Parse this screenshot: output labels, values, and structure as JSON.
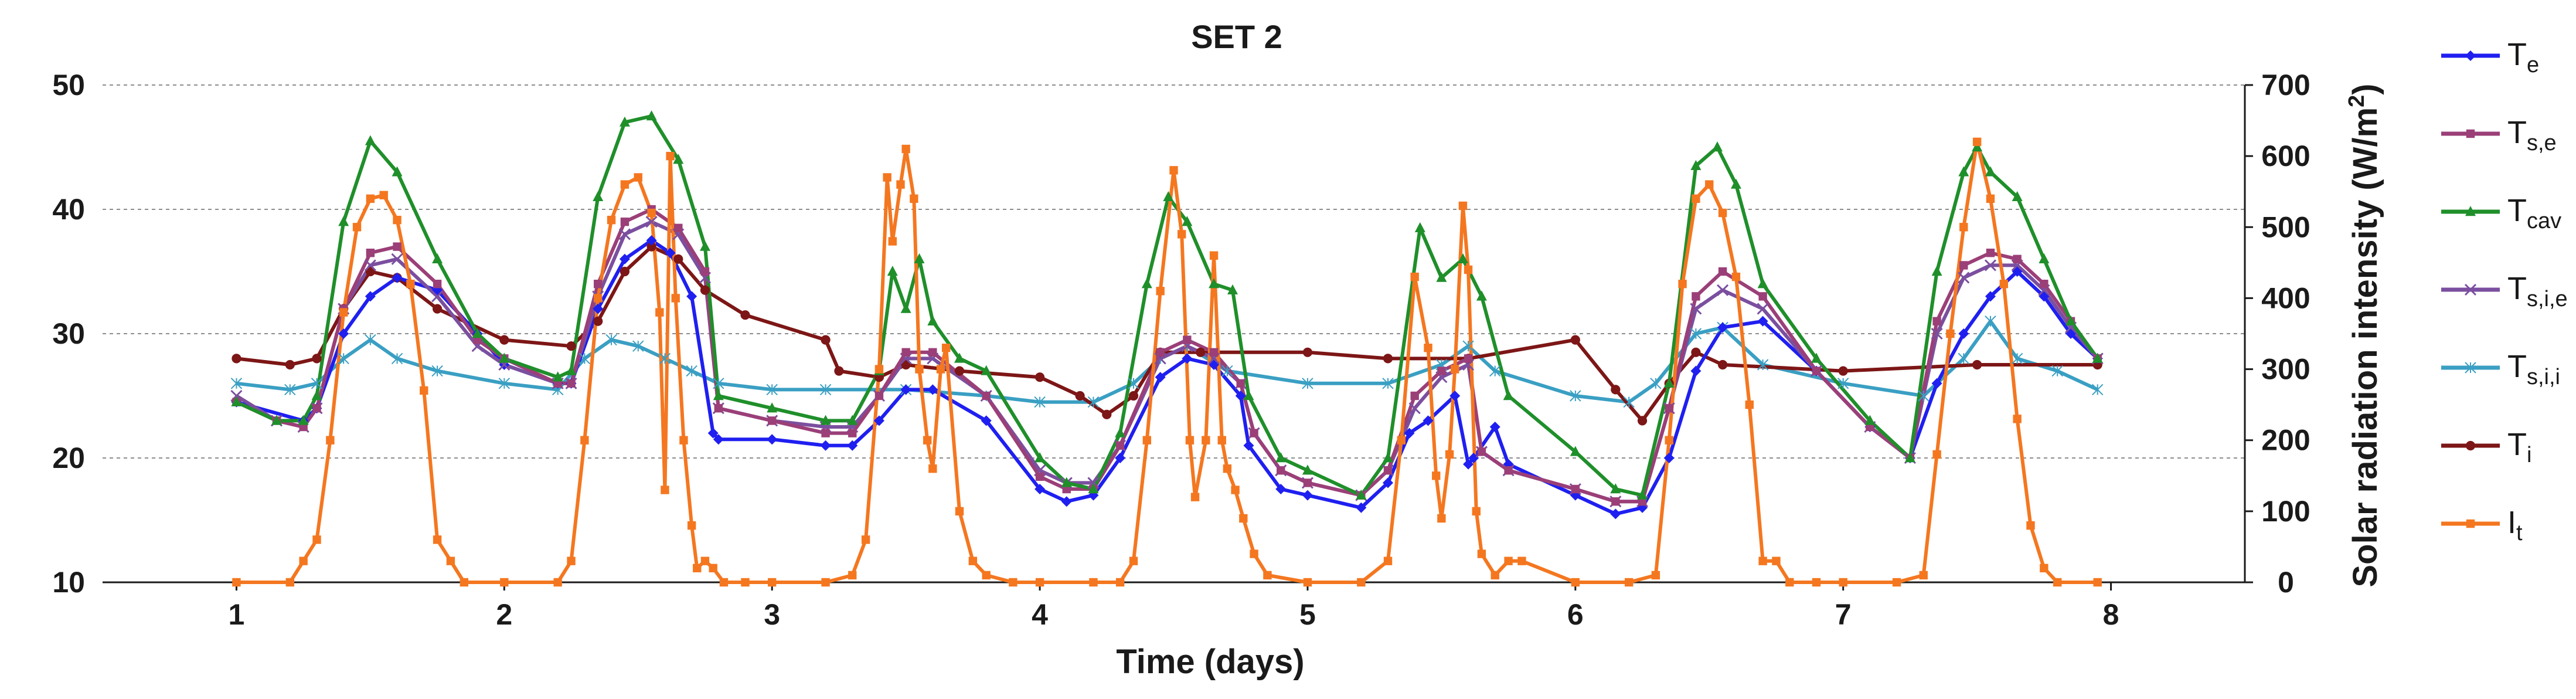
{
  "chart_data": {
    "type": "line",
    "title": "SET 2",
    "xlabel": "Time (days)",
    "ylabel": "",
    "y2label": "Solar radiation intensity (W/m",
    "y2label_sup": "2",
    "y2label_end": ")",
    "xlim": [
      0.5,
      8.5
    ],
    "ylim": [
      10,
      50
    ],
    "y2lim": [
      0,
      700
    ],
    "xticks": [
      "1",
      "2",
      "3",
      "4",
      "5",
      "6",
      "7",
      "8"
    ],
    "yticks": [
      "10",
      "20",
      "30",
      "40",
      "50"
    ],
    "y2ticks": [
      "0",
      "100",
      "200",
      "300",
      "400",
      "500",
      "600",
      "700"
    ],
    "series": [
      {
        "name": "T",
        "sub": "e",
        "color": "#1f1ff0",
        "marker": "diamond",
        "axis": "left",
        "x": [
          1.0,
          1.25,
          1.3,
          1.4,
          1.5,
          1.6,
          1.75,
          1.9,
          2.0,
          2.2,
          2.25,
          2.35,
          2.45,
          2.55,
          2.62,
          2.7,
          2.78,
          2.8,
          3.0,
          3.2,
          3.3,
          3.4,
          3.5,
          3.6,
          3.8,
          4.0,
          4.1,
          4.2,
          4.3,
          4.45,
          4.55,
          4.65,
          4.75,
          4.78,
          4.9,
          5.0,
          5.2,
          5.3,
          5.38,
          5.45,
          5.55,
          5.6,
          5.62,
          5.7,
          5.75,
          6.0,
          6.15,
          6.25,
          6.35,
          6.45,
          6.55,
          6.7,
          6.9,
          7.1,
          7.25,
          7.35,
          7.45,
          7.55,
          7.65,
          7.75,
          7.85,
          7.95
        ],
        "values": [
          24.5,
          23.0,
          24.0,
          30.0,
          33.0,
          34.5,
          33.5,
          30.0,
          27.5,
          26.0,
          26.0,
          32.0,
          36.0,
          37.5,
          36.5,
          33.0,
          22.0,
          21.5,
          21.5,
          21.0,
          21.0,
          23.0,
          25.5,
          25.5,
          23.0,
          17.5,
          16.5,
          17.0,
          20.0,
          26.5,
          28.0,
          27.5,
          25.0,
          21.0,
          17.5,
          17.0,
          16.0,
          18.0,
          22.0,
          23.0,
          25.0,
          19.5,
          20.0,
          22.5,
          19.5,
          17.0,
          15.5,
          16.0,
          20.0,
          27.0,
          30.5,
          31.0,
          27.0,
          22.5,
          20.0,
          26.0,
          30.0,
          33.0,
          35.0,
          33.0,
          30.0,
          28.0
        ]
      },
      {
        "name": "T",
        "sub": "s,e",
        "color": "#9b3f78",
        "marker": "square",
        "axis": "left",
        "x": [
          1.0,
          1.15,
          1.25,
          1.3,
          1.4,
          1.5,
          1.6,
          1.75,
          1.9,
          2.0,
          2.2,
          2.25,
          2.35,
          2.45,
          2.55,
          2.65,
          2.75,
          2.8,
          3.0,
          3.2,
          3.3,
          3.4,
          3.5,
          3.6,
          3.8,
          4.0,
          4.1,
          4.2,
          4.3,
          4.45,
          4.55,
          4.65,
          4.75,
          4.8,
          4.9,
          5.0,
          5.2,
          5.3,
          5.4,
          5.5,
          5.6,
          5.65,
          5.75,
          6.0,
          6.15,
          6.25,
          6.35,
          6.45,
          6.55,
          6.7,
          6.9,
          7.1,
          7.25,
          7.35,
          7.45,
          7.55,
          7.65,
          7.75,
          7.85,
          7.95
        ],
        "values": [
          24.5,
          23.0,
          22.5,
          24.0,
          32.0,
          36.5,
          37.0,
          34.0,
          29.5,
          28.0,
          26.0,
          26.0,
          34.0,
          39.0,
          40.0,
          38.5,
          35.0,
          24.0,
          23.0,
          22.0,
          22.0,
          25.0,
          28.5,
          28.5,
          25.0,
          18.5,
          17.5,
          17.5,
          21.0,
          28.5,
          29.5,
          28.5,
          26.0,
          22.0,
          19.0,
          18.0,
          17.0,
          19.0,
          25.0,
          27.0,
          28.0,
          20.5,
          19.0,
          17.5,
          16.5,
          16.5,
          24.0,
          33.0,
          35.0,
          33.0,
          27.0,
          22.5,
          20.0,
          31.0,
          35.5,
          36.5,
          36.0,
          34.0,
          31.0,
          28.0
        ]
      },
      {
        "name": "T",
        "sub": "cav",
        "color": "#1f8f2a",
        "marker": "triangle",
        "axis": "left",
        "x": [
          1.0,
          1.15,
          1.25,
          1.3,
          1.4,
          1.5,
          1.6,
          1.75,
          1.9,
          2.0,
          2.2,
          2.25,
          2.35,
          2.45,
          2.55,
          2.65,
          2.75,
          2.8,
          3.0,
          3.2,
          3.3,
          3.4,
          3.45,
          3.5,
          3.55,
          3.6,
          3.7,
          3.8,
          4.0,
          4.1,
          4.2,
          4.3,
          4.4,
          4.48,
          4.55,
          4.65,
          4.72,
          4.78,
          4.9,
          5.0,
          5.2,
          5.3,
          5.42,
          5.5,
          5.58,
          5.65,
          5.75,
          6.0,
          6.15,
          6.25,
          6.35,
          6.45,
          6.53,
          6.6,
          6.7,
          6.9,
          7.1,
          7.25,
          7.35,
          7.45,
          7.5,
          7.55,
          7.65,
          7.75,
          7.85,
          7.95
        ],
        "values": [
          24.5,
          23.0,
          23.0,
          25.0,
          39.0,
          45.5,
          43.0,
          36.0,
          30.0,
          28.0,
          26.5,
          27.0,
          41.0,
          47.0,
          47.5,
          44.0,
          37.0,
          25.0,
          24.0,
          23.0,
          23.0,
          27.0,
          35.0,
          32.0,
          36.0,
          31.0,
          28.0,
          27.0,
          20.0,
          18.0,
          17.5,
          22.0,
          34.0,
          41.0,
          39.0,
          34.0,
          33.5,
          25.0,
          20.0,
          19.0,
          17.0,
          20.0,
          38.5,
          34.5,
          36.0,
          33.0,
          25.0,
          20.5,
          17.5,
          17.0,
          26.0,
          43.5,
          45.0,
          42.0,
          34.0,
          28.0,
          23.0,
          20.0,
          35.0,
          43.0,
          45.0,
          43.0,
          41.0,
          36.0,
          31.0,
          28.0
        ]
      },
      {
        "name": "T",
        "sub": "s,i,e",
        "color": "#7b4f9f",
        "marker": "x",
        "axis": "left",
        "x": [
          1.0,
          1.15,
          1.25,
          1.3,
          1.4,
          1.5,
          1.6,
          1.75,
          1.9,
          2.0,
          2.2,
          2.25,
          2.35,
          2.45,
          2.55,
          2.65,
          2.75,
          2.8,
          3.0,
          3.2,
          3.3,
          3.4,
          3.5,
          3.6,
          3.8,
          4.0,
          4.1,
          4.2,
          4.3,
          4.45,
          4.55,
          4.65,
          4.75,
          4.8,
          4.9,
          5.0,
          5.2,
          5.3,
          5.4,
          5.5,
          5.6,
          5.65,
          5.75,
          6.0,
          6.15,
          6.25,
          6.35,
          6.45,
          6.55,
          6.7,
          6.9,
          7.1,
          7.25,
          7.35,
          7.45,
          7.55,
          7.65,
          7.75,
          7.85,
          7.95
        ],
        "values": [
          25.0,
          23.0,
          22.5,
          24.0,
          32.0,
          35.5,
          36.0,
          33.0,
          29.0,
          27.5,
          26.0,
          26.0,
          33.0,
          38.0,
          39.0,
          38.0,
          34.5,
          24.0,
          23.0,
          22.5,
          22.5,
          25.0,
          28.0,
          28.0,
          25.0,
          19.0,
          18.0,
          18.0,
          21.0,
          28.0,
          29.0,
          28.0,
          26.0,
          22.0,
          19.0,
          18.0,
          17.0,
          19.0,
          24.0,
          26.5,
          27.5,
          20.5,
          19.0,
          17.5,
          16.5,
          16.5,
          24.0,
          32.0,
          33.5,
          32.0,
          27.0,
          22.5,
          20.0,
          30.0,
          34.5,
          35.5,
          35.5,
          33.5,
          30.5,
          28.0
        ]
      },
      {
        "name": "T",
        "sub": "s,i,i",
        "color": "#3a9fc3",
        "marker": "star",
        "axis": "left",
        "x": [
          1.0,
          1.2,
          1.3,
          1.4,
          1.5,
          1.6,
          1.75,
          2.0,
          2.2,
          2.3,
          2.4,
          2.5,
          2.6,
          2.7,
          2.8,
          3.0,
          3.2,
          3.5,
          3.8,
          4.0,
          4.2,
          4.35,
          4.45,
          4.55,
          4.7,
          5.0,
          5.3,
          5.5,
          5.6,
          5.7,
          6.0,
          6.2,
          6.3,
          6.45,
          6.55,
          6.7,
          7.0,
          7.3,
          7.45,
          7.55,
          7.65,
          7.8,
          7.95
        ],
        "values": [
          26.0,
          25.5,
          26.0,
          28.0,
          29.5,
          28.0,
          27.0,
          26.0,
          25.5,
          28.0,
          29.5,
          29.0,
          28.0,
          27.0,
          26.0,
          25.5,
          25.5,
          25.5,
          25.0,
          24.5,
          24.5,
          26.0,
          28.0,
          29.0,
          27.0,
          26.0,
          26.0,
          27.5,
          29.0,
          27.0,
          25.0,
          24.5,
          26.0,
          30.0,
          30.5,
          27.5,
          26.0,
          25.0,
          28.0,
          31.0,
          28.0,
          27.0,
          25.5
        ]
      },
      {
        "name": "T",
        "sub": "i",
        "color": "#7d1616",
        "marker": "circle",
        "axis": "left",
        "x": [
          1.0,
          1.2,
          1.3,
          1.4,
          1.5,
          1.6,
          1.75,
          2.0,
          2.25,
          2.35,
          2.45,
          2.55,
          2.65,
          2.75,
          2.9,
          3.2,
          3.25,
          3.4,
          3.5,
          3.7,
          4.0,
          4.15,
          4.25,
          4.35,
          4.45,
          4.6,
          5.0,
          5.3,
          5.6,
          6.0,
          6.15,
          6.25,
          6.35,
          6.45,
          6.55,
          7.0,
          7.5,
          7.95
        ],
        "values": [
          28.0,
          27.5,
          28.0,
          32.0,
          35.0,
          34.5,
          32.0,
          29.5,
          29.0,
          31.0,
          35.0,
          37.0,
          36.0,
          33.5,
          31.5,
          29.5,
          27.0,
          26.5,
          27.5,
          27.0,
          26.5,
          25.0,
          23.5,
          25.0,
          28.5,
          28.5,
          28.5,
          28.0,
          28.0,
          29.5,
          25.5,
          23.0,
          26.0,
          28.5,
          27.5,
          27.0,
          27.5,
          27.5
        ]
      },
      {
        "name": "I",
        "sub": "t",
        "color": "#f47720",
        "marker": "square",
        "axis": "right",
        "x": [
          1.0,
          1.2,
          1.25,
          1.3,
          1.35,
          1.4,
          1.45,
          1.5,
          1.55,
          1.6,
          1.65,
          1.7,
          1.75,
          1.8,
          1.85,
          2.0,
          2.2,
          2.25,
          2.3,
          2.35,
          2.4,
          2.45,
          2.5,
          2.55,
          2.58,
          2.6,
          2.62,
          2.64,
          2.67,
          2.7,
          2.72,
          2.75,
          2.78,
          2.82,
          2.9,
          3.0,
          3.2,
          3.3,
          3.35,
          3.4,
          3.43,
          3.45,
          3.48,
          3.5,
          3.53,
          3.55,
          3.58,
          3.6,
          3.63,
          3.65,
          3.7,
          3.75,
          3.8,
          3.9,
          4.0,
          4.2,
          4.3,
          4.35,
          4.4,
          4.45,
          4.5,
          4.53,
          4.56,
          4.58,
          4.62,
          4.65,
          4.68,
          4.7,
          4.73,
          4.76,
          4.8,
          4.85,
          5.0,
          5.2,
          5.3,
          5.35,
          5.4,
          5.45,
          5.48,
          5.5,
          5.53,
          5.55,
          5.58,
          5.6,
          5.63,
          5.65,
          5.7,
          5.75,
          5.8,
          6.0,
          6.2,
          6.3,
          6.35,
          6.4,
          6.45,
          6.5,
          6.55,
          6.6,
          6.65,
          6.7,
          6.75,
          6.8,
          6.9,
          7.0,
          7.2,
          7.3,
          7.35,
          7.4,
          7.45,
          7.5,
          7.55,
          7.6,
          7.65,
          7.7,
          7.75,
          7.8,
          7.95
        ],
        "values": [
          0,
          0,
          30,
          60,
          200,
          380,
          500,
          540,
          545,
          510,
          420,
          270,
          60,
          30,
          0,
          0,
          0,
          30,
          200,
          400,
          510,
          560,
          570,
          520,
          380,
          130,
          600,
          400,
          200,
          80,
          20,
          30,
          20,
          0,
          0,
          0,
          0,
          10,
          60,
          300,
          570,
          480,
          560,
          610,
          540,
          300,
          200,
          160,
          300,
          330,
          100,
          30,
          10,
          0,
          0,
          0,
          0,
          30,
          200,
          410,
          580,
          490,
          200,
          120,
          200,
          460,
          200,
          160,
          130,
          90,
          40,
          10,
          0,
          0,
          30,
          200,
          430,
          330,
          150,
          90,
          180,
          300,
          530,
          440,
          100,
          40,
          10,
          30,
          30,
          0,
          0,
          10,
          200,
          420,
          540,
          560,
          520,
          430,
          250,
          30,
          30,
          0,
          0,
          0,
          0,
          10,
          180,
          350,
          500,
          620,
          540,
          420,
          230,
          80,
          20,
          0,
          0
        ]
      }
    ]
  }
}
